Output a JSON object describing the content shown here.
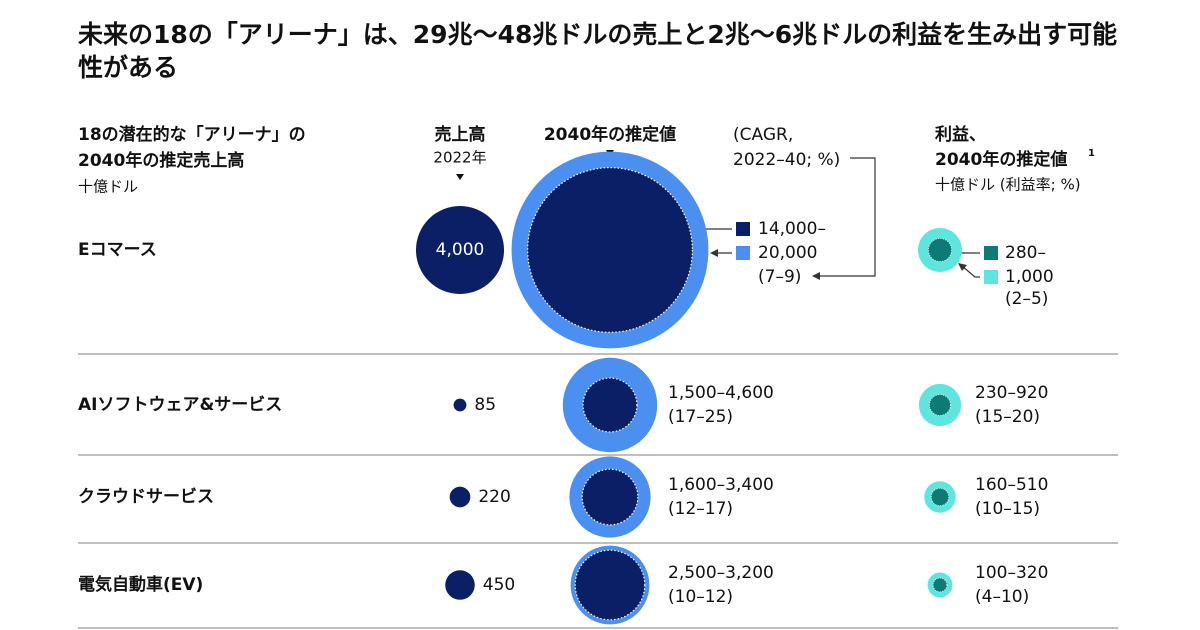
{
  "chart_data": {
    "type": "bubble-table",
    "title": "未来の18の「アリーナ」は、29兆〜48兆ドルの売上と2兆〜6兆ドルの利益を生み出す可能性がある",
    "row_header": [
      "18の潜在的な「アリーナ」の",
      "2040年の推定売上高"
    ],
    "row_unit": "十億ドル",
    "col_2022": [
      "売上高",
      "2022年"
    ],
    "col_2040": "2040年の推定値",
    "col_cagr": [
      "(CAGR,",
      "2022–40; %)"
    ],
    "col_profit": [
      "利益、",
      "2040年の推定値"
    ],
    "col_profit_note": "1",
    "col_profit_unit": "十億ドル (利益率; %)",
    "colors": {
      "revenue_2022": "#0b1f66",
      "revenue_low": "#0b1f66",
      "revenue_high": "#4b8ff0",
      "profit_low": "#0d7a76",
      "profit_high": "#5ee6de"
    },
    "rows": [
      {
        "name": "Eコマース",
        "revenue_2022": 4000,
        "revenue_2022_label": "4,000",
        "revenue_2040": [
          14000,
          20000
        ],
        "revenue_2040_labels": [
          "14,000–",
          "20,000"
        ],
        "cagr": "(7–9)",
        "profit_2040": [
          280,
          1000
        ],
        "profit_2040_labels": [
          "280–",
          "1,000"
        ],
        "margin": "(2–5)"
      },
      {
        "name": "AIソフトウェア&サービス",
        "revenue_2022": 85,
        "revenue_2022_label": "85",
        "revenue_2040": [
          1500,
          4600
        ],
        "revenue_2040_labels": [
          "1,500–4,600"
        ],
        "cagr": "(17–25)",
        "profit_2040": [
          230,
          920
        ],
        "profit_2040_labels": [
          "230–920"
        ],
        "margin": "(15–20)"
      },
      {
        "name": "クラウドサービス",
        "revenue_2022": 220,
        "revenue_2022_label": "220",
        "revenue_2040": [
          1600,
          3400
        ],
        "revenue_2040_labels": [
          "1,600–3,400"
        ],
        "cagr": "(12–17)",
        "profit_2040": [
          160,
          510
        ],
        "profit_2040_labels": [
          "160–510"
        ],
        "margin": "(10–15)"
      },
      {
        "name": "電気自動車(EV)",
        "revenue_2022": 450,
        "revenue_2022_label": "450",
        "revenue_2040": [
          2500,
          3200
        ],
        "revenue_2040_labels": [
          "2,500–3,200"
        ],
        "cagr": "(10–12)",
        "profit_2040": [
          100,
          320
        ],
        "profit_2040_labels": [
          "100–320"
        ],
        "margin": "(4–10)"
      }
    ]
  }
}
